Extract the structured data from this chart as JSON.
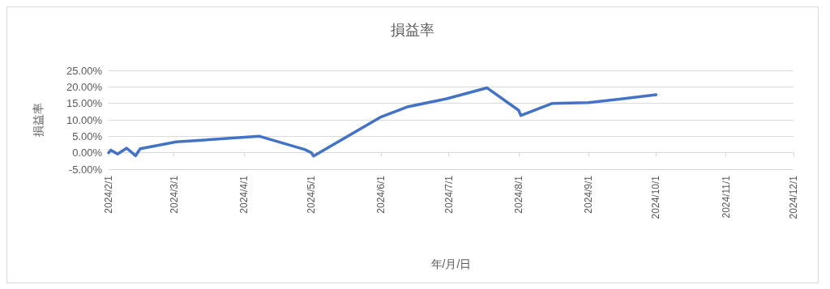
{
  "chart_data": {
    "type": "line",
    "title": "損益率",
    "xlabel": "年/月/日",
    "ylabel": "損益率",
    "x": [
      "2024-02-01",
      "2024-02-02",
      "2024-02-05",
      "2024-02-09",
      "2024-02-13",
      "2024-02-15",
      "2024-03-02",
      "2024-04-08",
      "2024-04-28",
      "2024-05-01",
      "2024-05-02",
      "2024-06-01",
      "2024-06-13",
      "2024-06-30",
      "2024-07-18",
      "2024-08-01",
      "2024-08-02",
      "2024-08-16",
      "2024-09-01",
      "2024-10-01"
    ],
    "series": [
      {
        "color": "#4472c4",
        "values": [
          0,
          0.8,
          -0.4,
          1.4,
          -0.9,
          1.2,
          3.3,
          5.0,
          1.0,
          0,
          -1.0,
          10.9,
          14.0,
          16.4,
          19.7,
          12.9,
          11.3,
          15.0,
          15.2,
          17.6
        ]
      }
    ],
    "xlim": [
      "2024-02-01",
      "2024-12-01"
    ],
    "xticks": [
      {
        "value": "2024-02-01",
        "label": "2024/2/1"
      },
      {
        "value": "2024-03-01",
        "label": "2024/3/1"
      },
      {
        "value": "2024-04-01",
        "label": "2024/4/1"
      },
      {
        "value": "2024-05-01",
        "label": "2024/5/1"
      },
      {
        "value": "2024-06-01",
        "label": "2024/6/1"
      },
      {
        "value": "2024-07-01",
        "label": "2024/7/1"
      },
      {
        "value": "2024-08-01",
        "label": "2024/8/1"
      },
      {
        "value": "2024-09-01",
        "label": "2024/9/1"
      },
      {
        "value": "2024-10-01",
        "label": "2024/10/1"
      },
      {
        "value": "2024-11-01",
        "label": "2024/11/1"
      },
      {
        "value": "2024-12-01",
        "label": "2024/12/1"
      }
    ],
    "ylim": [
      -5,
      25
    ],
    "yticks": [
      {
        "value": -5,
        "label": "-5.00%"
      },
      {
        "value": 0,
        "label": "0.00%"
      },
      {
        "value": 5,
        "label": "5.00%"
      },
      {
        "value": 10,
        "label": "10.00%"
      },
      {
        "value": 15,
        "label": "15.00%"
      },
      {
        "value": 20,
        "label": "20.00%"
      },
      {
        "value": 25,
        "label": "25.00%"
      }
    ],
    "grid": "y",
    "marker": "none",
    "line_style": "solid"
  }
}
